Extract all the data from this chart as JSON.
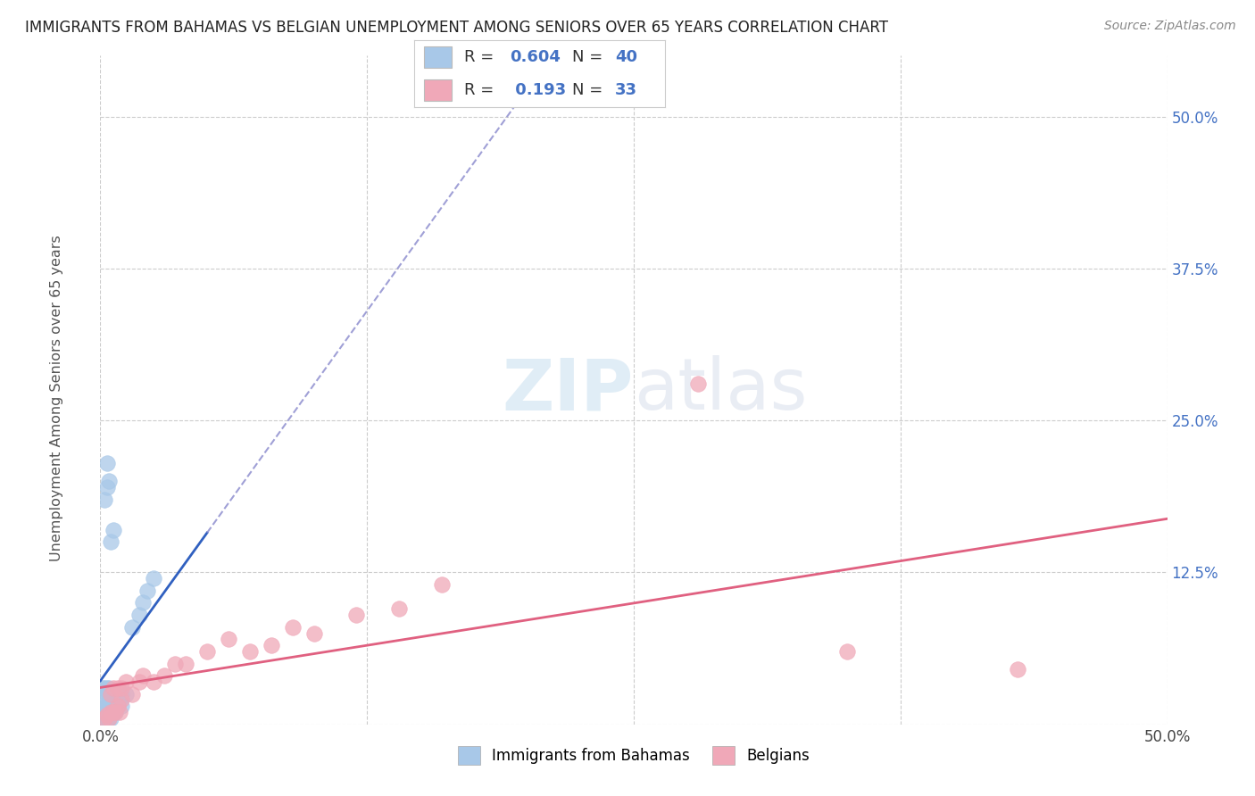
{
  "title": "IMMIGRANTS FROM BAHAMAS VS BELGIAN UNEMPLOYMENT AMONG SENIORS OVER 65 YEARS CORRELATION CHART",
  "source": "Source: ZipAtlas.com",
  "ylabel": "Unemployment Among Seniors over 65 years",
  "xlim": [
    0.0,
    0.5
  ],
  "ylim": [
    0.0,
    0.55
  ],
  "blue_R": 0.604,
  "blue_N": 40,
  "pink_R": 0.193,
  "pink_N": 33,
  "blue_color": "#a8c8e8",
  "pink_color": "#f0a8b8",
  "blue_line_color": "#3060c0",
  "pink_line_color": "#e06080",
  "ytick_color": "#4472c4",
  "background_color": "#ffffff",
  "blue_x": [
    0.001,
    0.001,
    0.001,
    0.002,
    0.002,
    0.002,
    0.002,
    0.002,
    0.003,
    0.003,
    0.003,
    0.003,
    0.003,
    0.004,
    0.004,
    0.004,
    0.004,
    0.005,
    0.005,
    0.005,
    0.006,
    0.006,
    0.007,
    0.007,
    0.008,
    0.009,
    0.01,
    0.01,
    0.012,
    0.015,
    0.018,
    0.02,
    0.022,
    0.025,
    0.002,
    0.003,
    0.003,
    0.004,
    0.005,
    0.006
  ],
  "blue_y": [
    0.005,
    0.01,
    0.03,
    0.005,
    0.008,
    0.012,
    0.02,
    0.03,
    0.005,
    0.01,
    0.015,
    0.02,
    0.03,
    0.005,
    0.01,
    0.02,
    0.03,
    0.005,
    0.01,
    0.02,
    0.01,
    0.02,
    0.01,
    0.015,
    0.015,
    0.02,
    0.015,
    0.025,
    0.025,
    0.08,
    0.09,
    0.1,
    0.11,
    0.12,
    0.185,
    0.195,
    0.215,
    0.2,
    0.15,
    0.16
  ],
  "pink_x": [
    0.002,
    0.003,
    0.004,
    0.005,
    0.005,
    0.006,
    0.006,
    0.007,
    0.008,
    0.008,
    0.009,
    0.01,
    0.01,
    0.012,
    0.015,
    0.018,
    0.02,
    0.025,
    0.03,
    0.035,
    0.04,
    0.05,
    0.06,
    0.07,
    0.08,
    0.09,
    0.1,
    0.12,
    0.14,
    0.16,
    0.28,
    0.35,
    0.43
  ],
  "pink_y": [
    0.005,
    0.008,
    0.005,
    0.01,
    0.025,
    0.01,
    0.03,
    0.01,
    0.015,
    0.03,
    0.01,
    0.02,
    0.03,
    0.035,
    0.025,
    0.035,
    0.04,
    0.035,
    0.04,
    0.05,
    0.05,
    0.06,
    0.07,
    0.06,
    0.065,
    0.08,
    0.075,
    0.09,
    0.095,
    0.115,
    0.28,
    0.06,
    0.045
  ]
}
